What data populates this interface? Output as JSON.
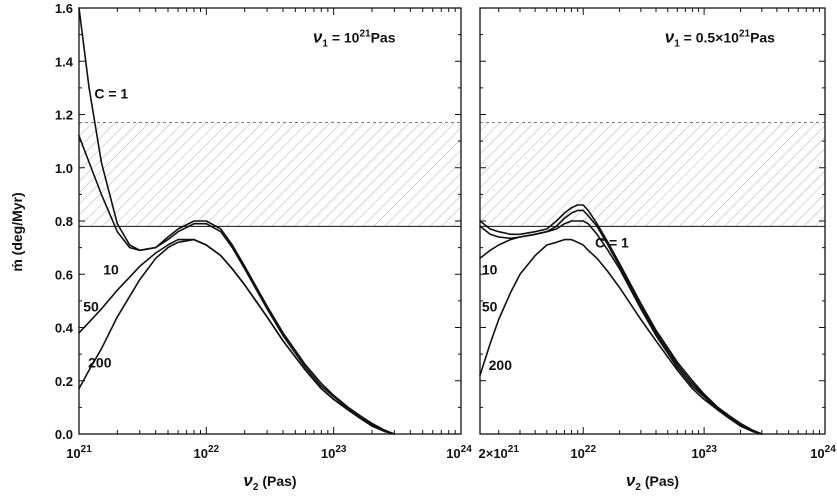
{
  "chart_data": [
    {
      "type": "line",
      "panel": "left",
      "annotation_prefix": "ν",
      "annotation_sub": "1",
      "annotation_mid": " = 10",
      "annotation_sup": "21",
      "annotation_suffix": "Pas",
      "xlabel_main": "ν",
      "xlabel_sub": "2",
      "xlabel_unit": " (Pas)",
      "ylabel": "ṁ (deg/Myr)",
      "x_scale": "log",
      "xlim": [
        1e+21,
        1e+24
      ],
      "ylim": [
        0,
        1.6
      ],
      "x_ticks": [
        {
          "value": 1e+21,
          "base": "10",
          "exp": "21"
        },
        {
          "value": 1e+22,
          "base": "10",
          "exp": "22"
        },
        {
          "value": 1e+23,
          "base": "10",
          "exp": "23"
        },
        {
          "value": 1e+24,
          "base": "10",
          "exp": "24"
        }
      ],
      "y_ticks": [
        {
          "value": 0.0,
          "label": "0.0"
        },
        {
          "value": 0.2,
          "label": "0.2"
        },
        {
          "value": 0.4,
          "label": "0.4"
        },
        {
          "value": 0.6,
          "label": "0.6"
        },
        {
          "value": 0.8,
          "label": "0.8"
        },
        {
          "value": 1.0,
          "label": "1.0"
        },
        {
          "value": 1.2,
          "label": "1.2"
        },
        {
          "value": 1.4,
          "label": "1.4"
        },
        {
          "value": 1.6,
          "label": "1.6"
        }
      ],
      "shaded_band": [
        0.78,
        1.17
      ],
      "reference_line": 0.78,
      "series": [
        {
          "name": "C = 1",
          "x": [
            1e+21,
            1.2e+21,
            1.5e+21,
            2e+21,
            2.5e+21,
            3e+21,
            4e+21,
            5e+21,
            6e+21,
            8e+21,
            1e+22,
            1.3e+22,
            1.6e+22,
            2e+22,
            3e+22,
            4e+22,
            6e+22,
            8e+22,
            1e+23,
            1.3e+23,
            1.6e+23,
            2e+23,
            2.5e+23,
            3e+23
          ],
          "y": [
            1.6,
            1.3,
            1.02,
            0.79,
            0.71,
            0.69,
            0.7,
            0.74,
            0.77,
            0.8,
            0.8,
            0.77,
            0.71,
            0.63,
            0.48,
            0.38,
            0.26,
            0.19,
            0.145,
            0.1,
            0.07,
            0.04,
            0.015,
            0.0
          ]
        },
        {
          "name": "10",
          "x": [
            1e+21,
            1.2e+21,
            1.5e+21,
            2e+21,
            2.5e+21,
            3e+21,
            4e+21,
            5e+21,
            6e+21,
            8e+21,
            1e+22,
            1.3e+22,
            1.6e+22,
            2e+22,
            3e+22,
            4e+22,
            6e+22,
            8e+22,
            1e+23,
            1.3e+23,
            1.6e+23,
            2e+23,
            2.5e+23,
            3e+23
          ],
          "y": [
            1.12,
            1.02,
            0.9,
            0.76,
            0.7,
            0.69,
            0.7,
            0.73,
            0.76,
            0.79,
            0.79,
            0.76,
            0.7,
            0.62,
            0.47,
            0.37,
            0.25,
            0.18,
            0.14,
            0.095,
            0.065,
            0.035,
            0.012,
            0.0
          ]
        },
        {
          "name": "50",
          "x": [
            1e+21,
            1.2e+21,
            1.5e+21,
            2e+21,
            3e+21,
            4e+21,
            5e+21,
            6e+21,
            8e+21,
            1e+22,
            1.3e+22,
            1.6e+22,
            2e+22,
            3e+22,
            4e+22,
            6e+22,
            8e+22,
            1e+23,
            1.3e+23,
            1.6e+23,
            2e+23,
            2.5e+23,
            3e+23
          ],
          "y": [
            0.38,
            0.42,
            0.47,
            0.54,
            0.63,
            0.68,
            0.71,
            0.73,
            0.73,
            0.71,
            0.67,
            0.62,
            0.56,
            0.44,
            0.35,
            0.24,
            0.17,
            0.13,
            0.09,
            0.06,
            0.03,
            0.01,
            0.0
          ]
        },
        {
          "name": "200",
          "x": [
            1e+21,
            1.2e+21,
            1.5e+21,
            2e+21,
            3e+21,
            4e+21,
            5e+21,
            6e+21,
            8e+21,
            1e+22,
            1.3e+22,
            1.6e+22,
            2e+22,
            3e+22,
            4e+22,
            6e+22,
            8e+22,
            1e+23,
            1.3e+23,
            1.6e+23,
            2e+23,
            2.5e+23,
            3e+23
          ],
          "y": [
            0.17,
            0.24,
            0.32,
            0.44,
            0.58,
            0.66,
            0.7,
            0.72,
            0.73,
            0.71,
            0.67,
            0.62,
            0.56,
            0.44,
            0.35,
            0.24,
            0.17,
            0.13,
            0.09,
            0.06,
            0.03,
            0.01,
            0.0
          ]
        }
      ],
      "curve_labels": [
        {
          "text": "C = 1",
          "x": 1.32e+21,
          "y": 1.26
        },
        {
          "text": "10",
          "x": 1.55e+21,
          "y": 0.6
        },
        {
          "text": "50",
          "x": 1.08e+21,
          "y": 0.46
        },
        {
          "text": "200",
          "x": 1.18e+21,
          "y": 0.25
        }
      ],
      "annotation_pos": {
        "x": 1.45e+23,
        "y": 1.47
      }
    },
    {
      "type": "line",
      "panel": "right",
      "annotation_prefix": "ν",
      "annotation_sub": "1",
      "annotation_mid": " = 0.5×10",
      "annotation_sup": "21",
      "annotation_suffix": "Pas",
      "xlabel_main": "ν",
      "xlabel_sub": "2",
      "xlabel_unit": " (Pas)",
      "ylabel": "",
      "x_scale": "log",
      "xlim": [
        1.4e+21,
        1e+24
      ],
      "ylim": [
        0,
        1.6
      ],
      "x_ticks": [
        {
          "value": 2e+21,
          "base": "2×10",
          "exp": "21"
        },
        {
          "value": 1e+22,
          "base": "10",
          "exp": "22"
        },
        {
          "value": 1e+23,
          "base": "10",
          "exp": "23"
        },
        {
          "value": 1e+24,
          "base": "10",
          "exp": "24"
        }
      ],
      "y_ticks": [
        {
          "value": 0.0,
          "label": ""
        },
        {
          "value": 0.2,
          "label": ""
        },
        {
          "value": 0.4,
          "label": ""
        },
        {
          "value": 0.6,
          "label": ""
        },
        {
          "value": 0.8,
          "label": ""
        },
        {
          "value": 1.0,
          "label": ""
        },
        {
          "value": 1.2,
          "label": ""
        },
        {
          "value": 1.4,
          "label": ""
        },
        {
          "value": 1.6,
          "label": ""
        }
      ],
      "shaded_band": [
        0.78,
        1.17
      ],
      "reference_line": 0.78,
      "series": [
        {
          "name": "C = 1",
          "x": [
            1.4e+21,
            1.7e+21,
            2e+21,
            2.5e+21,
            3e+21,
            4e+21,
            5e+21,
            6e+21,
            7e+21,
            8e+21,
            9e+21,
            1e+22,
            1.1e+22,
            1.3e+22,
            1.6e+22,
            2e+22,
            3e+22,
            4e+22,
            6e+22,
            8e+22,
            1e+23,
            1.3e+23,
            1.6e+23,
            2e+23,
            2.5e+23,
            3e+23
          ],
          "y": [
            0.8,
            0.77,
            0.76,
            0.75,
            0.75,
            0.76,
            0.77,
            0.8,
            0.83,
            0.85,
            0.86,
            0.86,
            0.84,
            0.79,
            0.72,
            0.64,
            0.49,
            0.39,
            0.27,
            0.2,
            0.15,
            0.1,
            0.07,
            0.04,
            0.015,
            0.0
          ]
        },
        {
          "name": "10",
          "x": [
            1.4e+21,
            1.7e+21,
            2e+21,
            2.5e+21,
            3e+21,
            4e+21,
            5e+21,
            6e+21,
            7e+21,
            8e+21,
            9e+21,
            1e+22,
            1.1e+22,
            1.3e+22,
            1.6e+22,
            2e+22,
            3e+22,
            4e+22,
            6e+22,
            8e+22,
            1e+23,
            1.3e+23,
            1.6e+23,
            2e+23,
            2.5e+23,
            3e+23
          ],
          "y": [
            0.78,
            0.75,
            0.74,
            0.735,
            0.74,
            0.75,
            0.76,
            0.78,
            0.81,
            0.83,
            0.84,
            0.84,
            0.82,
            0.78,
            0.71,
            0.63,
            0.48,
            0.38,
            0.26,
            0.19,
            0.145,
            0.095,
            0.065,
            0.035,
            0.012,
            0.0
          ]
        },
        {
          "name": "50",
          "x": [
            1.4e+21,
            1.7e+21,
            2e+21,
            2.5e+21,
            3e+21,
            4e+21,
            5e+21,
            6e+21,
            7e+21,
            8e+21,
            9e+21,
            1e+22,
            1.1e+22,
            1.3e+22,
            1.6e+22,
            2e+22,
            3e+22,
            4e+22,
            6e+22,
            8e+22,
            1e+23,
            1.3e+23,
            1.6e+23,
            2e+23,
            2.5e+23,
            3e+23
          ],
          "y": [
            0.66,
            0.69,
            0.71,
            0.73,
            0.74,
            0.75,
            0.76,
            0.77,
            0.79,
            0.8,
            0.8,
            0.8,
            0.79,
            0.75,
            0.69,
            0.62,
            0.47,
            0.37,
            0.25,
            0.18,
            0.14,
            0.09,
            0.06,
            0.03,
            0.01,
            0.0
          ]
        },
        {
          "name": "200",
          "x": [
            1.4e+21,
            1.7e+21,
            2e+21,
            2.5e+21,
            3e+21,
            4e+21,
            5e+21,
            6e+21,
            7e+21,
            8e+21,
            9e+21,
            1e+22,
            1.1e+22,
            1.3e+22,
            1.6e+22,
            2e+22,
            3e+22,
            4e+22,
            6e+22,
            8e+22,
            1e+23,
            1.3e+23,
            1.6e+23,
            2e+23,
            2.5e+23,
            3e+23
          ],
          "y": [
            0.22,
            0.34,
            0.43,
            0.53,
            0.6,
            0.67,
            0.71,
            0.72,
            0.73,
            0.73,
            0.72,
            0.71,
            0.69,
            0.66,
            0.61,
            0.55,
            0.43,
            0.35,
            0.24,
            0.17,
            0.13,
            0.09,
            0.06,
            0.03,
            0.01,
            0.0
          ]
        }
      ],
      "curve_labels": [
        {
          "text": "C = 1",
          "x": 1.25e+22,
          "y": 0.7
        },
        {
          "text": "10",
          "x": 1.45e+21,
          "y": 0.6
        },
        {
          "text": "50",
          "x": 1.45e+21,
          "y": 0.46
        },
        {
          "text": "200",
          "x": 1.65e+21,
          "y": 0.24
        }
      ],
      "annotation_pos": {
        "x": 1.35e+23,
        "y": 1.47
      }
    }
  ]
}
